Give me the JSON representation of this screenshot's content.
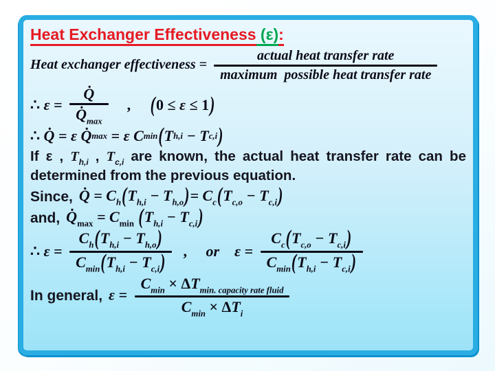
{
  "colors": {
    "title_red": "#e61a23",
    "title_green": "#00a651",
    "border_blue": "#29ade3",
    "border_shade": "#0e92cf",
    "bg_top": "#eaf8fe",
    "bg_bottom": "#a4e6f9",
    "text": "#0b0b16"
  },
  "title": {
    "main": "Heat Exchanger Effectiveness",
    "symbol": " (ε)",
    "colon": ":"
  },
  "labels": {
    "since": "Since,",
    "and": "and,",
    "in_general": "In general,"
  },
  "math": {
    "definition": [
      {
        "t": "Heat exchanger effectiveness = "
      },
      {
        "k": "frac",
        "n": [
          {
            "t": "actual heat transfer rate"
          }
        ],
        "d": [
          {
            "t": "maximum  possible heat transfer rate"
          }
        ]
      }
    ],
    "ratio": [
      {
        "t": "∴ ",
        "k": "up"
      },
      {
        "t": "ε = "
      },
      {
        "k": "frac",
        "n": [
          {
            "t": "Q̇"
          }
        ],
        "d": [
          {
            "t": "Q̇"
          },
          {
            "t": "max",
            "k": "sub"
          }
        ]
      },
      {
        "t": "    ,     ",
        "k": "up"
      },
      {
        "t": "(",
        "k": "big"
      },
      {
        "t": "0 ≤ ",
        "k": "up"
      },
      {
        "t": "ε"
      },
      {
        "t": " ≤ 1",
        "k": "up"
      },
      {
        "t": ")",
        "k": "big"
      }
    ],
    "q_equals": [
      {
        "t": "∴ ",
        "k": "up"
      },
      {
        "t": "Q̇"
      },
      {
        "t": " = "
      },
      {
        "t": "ε "
      },
      {
        "t": "Q̇"
      },
      {
        "t": "max",
        "k": "sub"
      },
      {
        "t": " = "
      },
      {
        "t": "ε C"
      },
      {
        "t": "min",
        "k": "sub"
      },
      {
        "t": "(",
        "k": "big"
      },
      {
        "t": "T"
      },
      {
        "t": "h,i",
        "k": "sub"
      },
      {
        "t": " − "
      },
      {
        "t": "T"
      },
      {
        "t": "c,i",
        "k": "sub"
      },
      {
        "t": ")",
        "k": "big"
      }
    ],
    "known_note": [
      {
        "t": "If ε , "
      },
      {
        "t": "T",
        "k": "it"
      },
      {
        "t": "h,i",
        "k": "sub"
      },
      {
        "t": " , "
      },
      {
        "t": "T",
        "k": "it"
      },
      {
        "t": "c,i",
        "k": "sub"
      },
      {
        "t": " are known, the actual heat transfer rate can be determined from the previous equation."
      }
    ],
    "since_eq": [
      {
        "t": "Q̇"
      },
      {
        "t": " = C"
      },
      {
        "t": "h",
        "k": "sub"
      },
      {
        "t": "(",
        "k": "big"
      },
      {
        "t": "T"
      },
      {
        "t": "h,i",
        "k": "sub"
      },
      {
        "t": " − "
      },
      {
        "t": "T"
      },
      {
        "t": "h,o",
        "k": "sub"
      },
      {
        "t": ")",
        "k": "big"
      },
      {
        "t": "= C"
      },
      {
        "t": "c",
        "k": "sub"
      },
      {
        "t": "(",
        "k": "big"
      },
      {
        "t": "T"
      },
      {
        "t": "c,o",
        "k": "sub"
      },
      {
        "t": " − "
      },
      {
        "t": "T"
      },
      {
        "t": "c,i",
        "k": "sub"
      },
      {
        "t": ")",
        "k": "big"
      }
    ],
    "and_eq": [
      {
        "t": "Q̇"
      },
      {
        "t": "max",
        "k": "rsub"
      },
      {
        "t": " = C"
      },
      {
        "t": "min",
        "k": "rsub"
      },
      {
        "t": " "
      },
      {
        "t": "(",
        "k": "big"
      },
      {
        "t": "T"
      },
      {
        "t": "h,i",
        "k": "sub"
      },
      {
        "t": " − "
      },
      {
        "t": "T"
      },
      {
        "t": "c,i",
        "k": "sub"
      },
      {
        "t": ")",
        "k": "big"
      }
    ],
    "epsilon_ratios": [
      {
        "t": "∴ ",
        "k": "up"
      },
      {
        "t": "ε = "
      },
      {
        "k": "frac",
        "n": [
          {
            "t": "C"
          },
          {
            "t": "h",
            "k": "sub"
          },
          {
            "t": "(",
            "k": "big"
          },
          {
            "t": "T"
          },
          {
            "t": "h,i",
            "k": "sub"
          },
          {
            "t": " − "
          },
          {
            "t": "T"
          },
          {
            "t": "h,o",
            "k": "sub"
          },
          {
            "t": ")",
            "k": "big"
          }
        ],
        "d": [
          {
            "t": "C"
          },
          {
            "t": "min",
            "k": "sub"
          },
          {
            "t": "(",
            "k": "big"
          },
          {
            "t": "T"
          },
          {
            "t": "h,i",
            "k": "sub"
          },
          {
            "t": " − "
          },
          {
            "t": "T"
          },
          {
            "t": "c,i",
            "k": "sub"
          },
          {
            "t": ")",
            "k": "big"
          }
        ]
      },
      {
        "t": "  ,     ",
        "k": "up"
      },
      {
        "t": "or"
      },
      {
        "t": "    ",
        "k": "up"
      },
      {
        "t": "ε = "
      },
      {
        "k": "frac",
        "n": [
          {
            "t": "C"
          },
          {
            "t": "c",
            "k": "sub"
          },
          {
            "t": "(",
            "k": "big"
          },
          {
            "t": "T"
          },
          {
            "t": "c,o",
            "k": "sub"
          },
          {
            "t": " − "
          },
          {
            "t": "T"
          },
          {
            "t": "c,i",
            "k": "sub"
          },
          {
            "t": ")",
            "k": "big"
          }
        ],
        "d": [
          {
            "t": "C"
          },
          {
            "t": "min",
            "k": "sub"
          },
          {
            "t": "(",
            "k": "big"
          },
          {
            "t": "T"
          },
          {
            "t": "h,i",
            "k": "sub"
          },
          {
            "t": " − "
          },
          {
            "t": "T"
          },
          {
            "t": "c,i",
            "k": "sub"
          },
          {
            "t": ")",
            "k": "big"
          }
        ]
      }
    ],
    "general_eq": [
      {
        "t": "ε = "
      },
      {
        "k": "frac",
        "n": [
          {
            "t": "C"
          },
          {
            "t": "min",
            "k": "sub"
          },
          {
            "t": " × Δ",
            "k": "up"
          },
          {
            "t": "T"
          },
          {
            "t": "min. capacity rate fluid",
            "k": "sub"
          }
        ],
        "d": [
          {
            "t": "C"
          },
          {
            "t": "min",
            "k": "sub"
          },
          {
            "t": " × Δ",
            "k": "up"
          },
          {
            "t": "T"
          },
          {
            "t": "i",
            "k": "sub"
          }
        ]
      }
    ]
  }
}
